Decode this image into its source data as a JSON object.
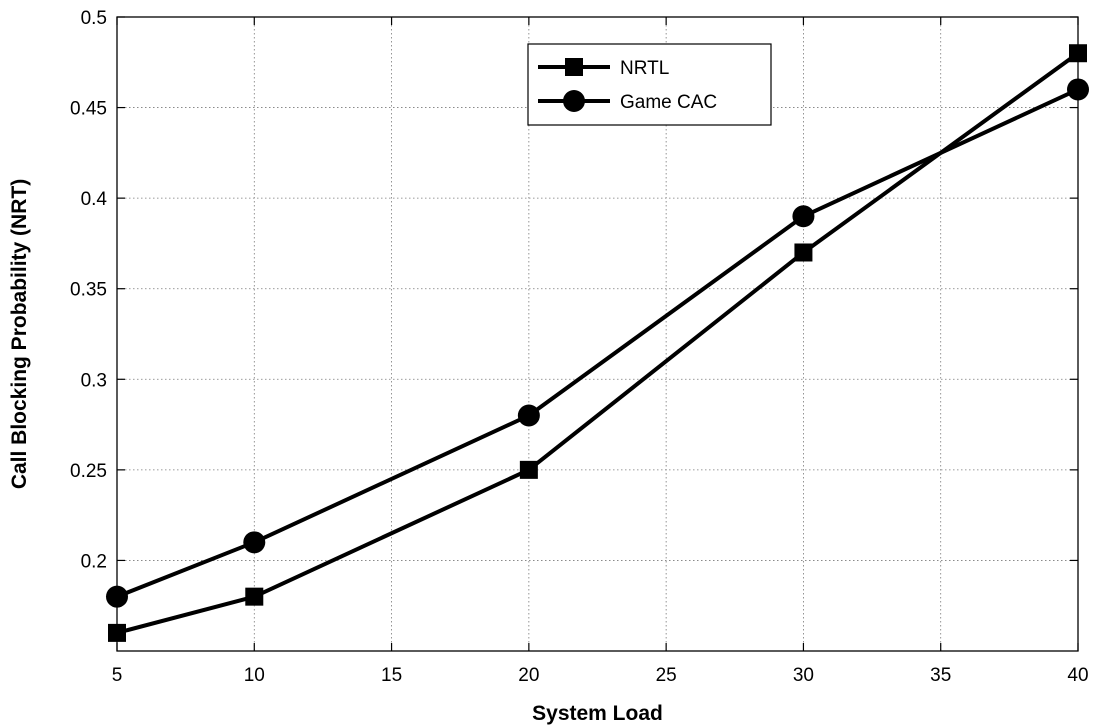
{
  "chart_data": {
    "type": "line",
    "xlabel": "System Load",
    "ylabel": "Call Blocking Probability (NRT)",
    "xlim": [
      5,
      40
    ],
    "ylim": [
      0.15,
      0.5
    ],
    "xticks": [
      5,
      10,
      15,
      20,
      25,
      30,
      35,
      40
    ],
    "xtick_labels": [
      "5",
      "10",
      "15",
      "20",
      "25",
      "30",
      "35",
      "40"
    ],
    "yticks": [
      0.2,
      0.25,
      0.3,
      0.35,
      0.4,
      0.45,
      0.5
    ],
    "ytick_labels": [
      "0.2",
      "0.25",
      "0.3",
      "0.35",
      "0.4",
      "0.45",
      "0.5"
    ],
    "grid": true,
    "legend_position": "top-right",
    "x": [
      5,
      10,
      20,
      30,
      40
    ],
    "series": [
      {
        "name": "NRTL",
        "marker": "square",
        "color": "#000000",
        "values": [
          0.16,
          0.18,
          0.25,
          0.37,
          0.48
        ]
      },
      {
        "name": "Game CAC",
        "marker": "circle",
        "color": "#000000",
        "values": [
          0.18,
          0.21,
          0.28,
          0.39,
          0.46
        ]
      }
    ]
  }
}
